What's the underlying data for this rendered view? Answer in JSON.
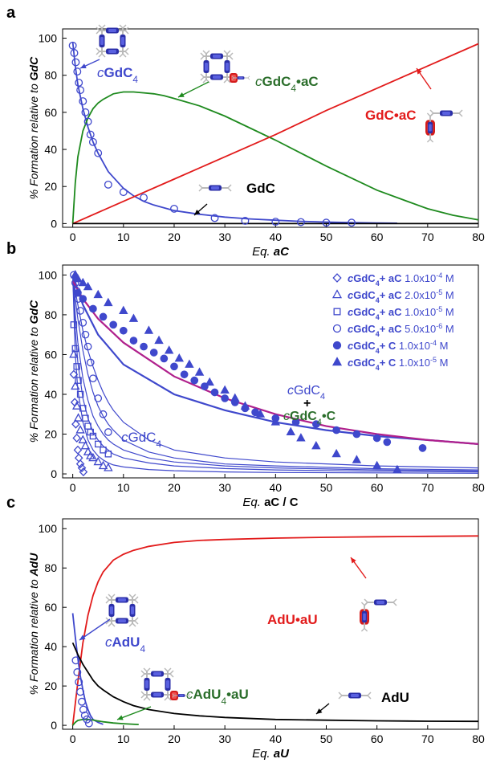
{
  "panel_labels": [
    "a",
    "b",
    "c"
  ],
  "colors": {
    "blue": "#3f48cc",
    "green": "#1e8a1e",
    "red": "#e21b1b",
    "black": "#000000",
    "magenta": "#b0208c",
    "dkgreen": "#2b6e2b"
  },
  "chart_data": [
    {
      "type": "line",
      "panel": "a",
      "xlabel_prefix": "Eq. ",
      "xlabel_var": "aC",
      "ylabel_prefix": "% Formation relative to ",
      "ylabel_var": "GdC",
      "xlim": [
        -2,
        80
      ],
      "ylim": [
        -2,
        105
      ],
      "xticks": [
        0,
        10,
        20,
        30,
        40,
        50,
        60,
        70,
        80
      ],
      "yticks": [
        0,
        20,
        40,
        60,
        80,
        100
      ],
      "series": [
        {
          "name": "cGdC4",
          "color": "#3f48cc",
          "x": [
            0,
            0.5,
            1,
            2,
            3,
            4,
            5,
            6,
            7,
            8,
            10,
            12,
            14,
            16,
            18,
            20,
            25,
            30,
            35,
            40,
            45,
            50,
            55,
            60,
            64
          ],
          "y": [
            98,
            85,
            75,
            62,
            52,
            44,
            38,
            33,
            28,
            25,
            19,
            15,
            12,
            10,
            8.5,
            7,
            5,
            3.5,
            2.5,
            1.8,
            1.2,
            0.8,
            0.5,
            0.3,
            0.2
          ]
        },
        {
          "name": "cGdC4•aC",
          "color": "#1e8a1e",
          "x": [
            0,
            0.5,
            1,
            2,
            3,
            4,
            5,
            6,
            8,
            10,
            12,
            14,
            16,
            18,
            20,
            25,
            30,
            35,
            40,
            45,
            50,
            55,
            60,
            65,
            70,
            75,
            80
          ],
          "y": [
            0,
            22,
            36,
            50,
            57,
            62,
            65,
            67,
            70,
            71,
            71,
            70.5,
            70,
            69,
            67.5,
            63.5,
            58,
            51.5,
            45,
            38,
            31,
            24.5,
            18,
            13,
            8,
            4.5,
            2
          ]
        },
        {
          "name": "GdC•aC",
          "color": "#e21b1b",
          "x": [
            0,
            10,
            20,
            30,
            40,
            50,
            60,
            70,
            80
          ],
          "y": [
            0,
            12,
            24,
            36,
            48,
            61,
            73,
            85,
            97
          ]
        },
        {
          "name": "GdC",
          "color": "#000000",
          "x": [
            0,
            80
          ],
          "y": [
            0,
            0
          ]
        }
      ],
      "scatter": {
        "color": "#3f48cc",
        "marker": "circle-open",
        "x": [
          0,
          0.3,
          0.6,
          0.9,
          1.2,
          1.5,
          2,
          2.5,
          3,
          3.5,
          4,
          5,
          7,
          10,
          14,
          20,
          28,
          34,
          40,
          45,
          50,
          55
        ],
        "y": [
          96,
          92,
          87,
          82,
          76,
          72,
          66,
          60,
          55,
          48,
          44,
          38,
          21,
          17,
          14,
          8,
          3,
          1.5,
          1,
          0.8,
          0.5,
          0.5
        ]
      },
      "labels": {
        "cgdc4": "GdC",
        "cgdc4ac": "GdC",
        "gdcac": "GdC•aC",
        "gdc": "GdC"
      }
    },
    {
      "type": "scatter",
      "panel": "b",
      "xlabel_prefix": "Eq. ",
      "xlabel_var": "aC / C",
      "ylabel_prefix": "% Formation relative to ",
      "ylabel_var": "GdC",
      "xlim": [
        -2,
        80
      ],
      "ylim": [
        -2,
        105
      ],
      "xticks": [
        0,
        10,
        20,
        30,
        40,
        50,
        60,
        70,
        80
      ],
      "yticks": [
        0,
        20,
        40,
        60,
        80,
        100
      ],
      "legend_position": "top-right",
      "legend": [
        {
          "marker": "diamond-open",
          "compound": "GdC",
          "plus": "+ ",
          "reagent": "aC",
          "conc": "1.0x10",
          "exp": "-4",
          "unit": " M"
        },
        {
          "marker": "triangle-open",
          "compound": "GdC",
          "plus": "+ ",
          "reagent": "aC",
          "conc": "2.0x10",
          "exp": "-5",
          "unit": " M"
        },
        {
          "marker": "square-open",
          "compound": "GdC",
          "plus": "+ ",
          "reagent": "aC",
          "conc": "1.0x10",
          "exp": "-5",
          "unit": " M"
        },
        {
          "marker": "circle-open",
          "compound": "GdC",
          "plus": "+ ",
          "reagent": "aC",
          "conc": "5.0x10",
          "exp": "-6",
          "unit": " M"
        },
        {
          "marker": "circle-filled",
          "compound": "GdC",
          "plus": "+ ",
          "reagent": "C",
          "conc": "1.0x10",
          "exp": "-4",
          "unit": " M"
        },
        {
          "marker": "triangle-filled",
          "compound": "GdC",
          "plus": "+ ",
          "reagent": "C",
          "conc": "1.0x10",
          "exp": "-5",
          "unit": " M"
        }
      ],
      "fit_curves": [
        {
          "color": "#3f48cc",
          "x": [
            0,
            0.5,
            1,
            2,
            3,
            4,
            5,
            6,
            7,
            8,
            10,
            15,
            20,
            30,
            40,
            60,
            80
          ],
          "y": [
            100,
            60,
            42,
            26,
            17,
            12,
            9,
            7,
            5.5,
            4.5,
            3.5,
            2.2,
            1.6,
            1,
            0.7,
            0.5,
            0.3
          ]
        },
        {
          "color": "#3f48cc",
          "x": [
            0,
            0.5,
            1,
            2,
            3,
            4,
            5,
            6,
            7,
            8,
            10,
            15,
            20,
            30,
            40,
            60,
            80
          ],
          "y": [
            100,
            72,
            56,
            38,
            28,
            21,
            17,
            14,
            12,
            10,
            8,
            5.5,
            4,
            2.7,
            2,
            1.3,
            1
          ]
        },
        {
          "color": "#3f48cc",
          "x": [
            0,
            0.5,
            1,
            2,
            3,
            4,
            5,
            6,
            7,
            8,
            10,
            15,
            20,
            30,
            40,
            60,
            80
          ],
          "y": [
            100,
            80,
            66,
            48,
            37,
            29,
            24,
            20,
            17,
            15,
            12,
            8,
            6,
            4,
            3,
            2,
            1.5
          ]
        },
        {
          "color": "#3f48cc",
          "x": [
            0,
            0.5,
            1,
            2,
            3,
            4,
            5,
            6,
            7,
            8,
            10,
            15,
            20,
            30,
            40,
            60,
            80
          ],
          "y": [
            100,
            88,
            78,
            62,
            50,
            41,
            34,
            29,
            25,
            22,
            17,
            11,
            8,
            5,
            4,
            2.6,
            2
          ]
        },
        {
          "color": "#3f48cc",
          "x": [
            0,
            0.5,
            1,
            2,
            3,
            4,
            5,
            6,
            7,
            8,
            10,
            15,
            20,
            30,
            40,
            60,
            80
          ],
          "y": [
            100,
            92,
            85,
            72,
            62,
            54,
            47,
            41,
            36,
            32,
            26,
            17,
            12,
            8,
            6,
            4,
            3
          ]
        },
        {
          "color": "#3f48cc",
          "x": [
            0,
            2,
            5,
            10,
            20,
            30,
            40,
            50,
            60,
            70,
            80
          ],
          "y": [
            100,
            85,
            70,
            55,
            40,
            32,
            26,
            22,
            19,
            17,
            15
          ]
        },
        {
          "color": "#b0208c",
          "x": [
            0,
            2,
            5,
            10,
            20,
            30,
            40,
            50,
            60,
            70,
            80
          ],
          "y": [
            97,
            88,
            78,
            66,
            49,
            38,
            30,
            24,
            20,
            17,
            15
          ]
        }
      ],
      "series": [
        {
          "marker": "diamond-open",
          "x": [
            0.2,
            0.4,
            0.6,
            0.8,
            1,
            1.2,
            1.5,
            1.8,
            2.1
          ],
          "y": [
            50,
            36,
            25,
            18,
            12,
            8,
            5,
            3,
            1
          ]
        },
        {
          "marker": "triangle-open",
          "x": [
            0.2,
            0.5,
            0.8,
            1.1,
            1.5,
            2,
            2.5,
            3,
            3.5,
            4,
            5,
            6,
            7
          ],
          "y": [
            60,
            44,
            34,
            28,
            22,
            17,
            14,
            11,
            9,
            8,
            6,
            4,
            3
          ]
        },
        {
          "marker": "square-open",
          "x": [
            0.2,
            0.5,
            0.8,
            1.1,
            1.5,
            2,
            2.5,
            3,
            3.5,
            4,
            5,
            6,
            7
          ],
          "y": [
            75,
            63,
            54,
            47,
            40,
            33,
            28,
            24,
            21,
            19,
            15,
            12,
            10
          ]
        },
        {
          "marker": "circle-open",
          "x": [
            0.2,
            0.5,
            0.8,
            1.1,
            1.5,
            2,
            2.5,
            3,
            3.5,
            4,
            5,
            6,
            7
          ],
          "y": [
            100,
            96,
            92,
            88,
            82,
            76,
            70,
            64,
            56,
            48,
            38,
            30,
            21
          ]
        },
        {
          "marker": "circle-filled",
          "x": [
            1,
            2,
            4,
            6,
            8,
            10,
            12,
            14,
            16,
            18,
            20,
            22,
            24,
            26,
            28,
            30,
            32,
            34,
            36,
            40,
            44,
            48,
            52,
            56,
            60,
            62,
            69
          ],
          "y": [
            91,
            88,
            83,
            79,
            75,
            72,
            67,
            64,
            61,
            58,
            54,
            50,
            47,
            44,
            41,
            38,
            36,
            33,
            31,
            28,
            26,
            25,
            22,
            20,
            18,
            16,
            13
          ]
        },
        {
          "marker": "triangle-filled",
          "x": [
            0.5,
            1,
            2,
            3,
            5,
            7,
            10,
            12,
            15,
            17,
            19,
            21,
            23,
            25,
            27,
            30,
            32,
            34,
            37,
            40,
            43,
            45,
            48,
            52,
            56,
            60,
            64
          ],
          "y": [
            100,
            98,
            96,
            94,
            90,
            86,
            82,
            78,
            72,
            67,
            62,
            58,
            55,
            51,
            46,
            42,
            38,
            34,
            30,
            26,
            21,
            18,
            14,
            10,
            7,
            4,
            2
          ]
        }
      ],
      "labels": {
        "cgdc4": "GdC",
        "cgdc4_sum": "GdC",
        "plus": "+",
        "cgdc4c": "GdC"
      }
    },
    {
      "type": "line",
      "panel": "c",
      "xlabel_prefix": "Eq. ",
      "xlabel_var": "aU",
      "ylabel_prefix": "% Formation relative to ",
      "ylabel_var": "AdU",
      "xlim": [
        -2,
        80
      ],
      "ylim": [
        -2,
        105
      ],
      "xticks": [
        0,
        10,
        20,
        30,
        40,
        50,
        60,
        70,
        80
      ],
      "yticks": [
        0,
        20,
        40,
        60,
        80,
        100
      ],
      "series": [
        {
          "name": "AdU•aU",
          "color": "#e21b1b",
          "x": [
            0,
            1,
            2,
            3,
            4,
            5,
            6,
            8,
            10,
            12,
            15,
            20,
            25,
            30,
            40,
            50,
            60,
            70,
            80
          ],
          "y": [
            0,
            22,
            42,
            56,
            66,
            73,
            78,
            84,
            87,
            89,
            91,
            93,
            94,
            94.5,
            95.2,
            95.6,
            95.9,
            96.1,
            96.3
          ]
        },
        {
          "name": "cAdU4",
          "color": "#3f48cc",
          "x": [
            0,
            0.5,
            1,
            1.5,
            2,
            2.5,
            3,
            3.5,
            4,
            5,
            6
          ],
          "y": [
            57,
            45,
            34,
            25,
            18,
            12,
            8,
            5,
            3,
            1.5,
            0.5
          ]
        },
        {
          "name": "cAdU4•aU",
          "color": "#1e8a1e",
          "x": [
            0,
            0.5,
            1,
            2,
            3,
            4,
            5,
            6,
            8,
            10,
            13
          ],
          "y": [
            0,
            1.5,
            2.5,
            3,
            3,
            2.7,
            2.2,
            1.8,
            1.2,
            0.8,
            0.4
          ]
        },
        {
          "name": "AdU",
          "color": "#000000",
          "x": [
            0,
            1,
            2,
            3,
            4,
            5,
            6,
            8,
            10,
            12,
            15,
            20,
            25,
            30,
            40,
            50,
            60,
            70,
            80
          ],
          "y": [
            42,
            36,
            31,
            27,
            23,
            20,
            18,
            14.5,
            12,
            10,
            8,
            6,
            4.8,
            4,
            3,
            2.6,
            2.3,
            2.1,
            2
          ]
        }
      ],
      "scatter": {
        "color": "#3f48cc",
        "marker": "circle-open",
        "x": [
          0.6,
          0.9,
          1.2,
          1.5,
          1.8,
          2.1,
          2.4,
          2.8,
          3.2
        ],
        "y": [
          33,
          27,
          22,
          17,
          12,
          8,
          5,
          3,
          1
        ]
      },
      "labels": {
        "cadu4": "AdU",
        "cadu4au": "AdU",
        "aduau": "AdU•aU",
        "adu": "AdU"
      }
    }
  ]
}
